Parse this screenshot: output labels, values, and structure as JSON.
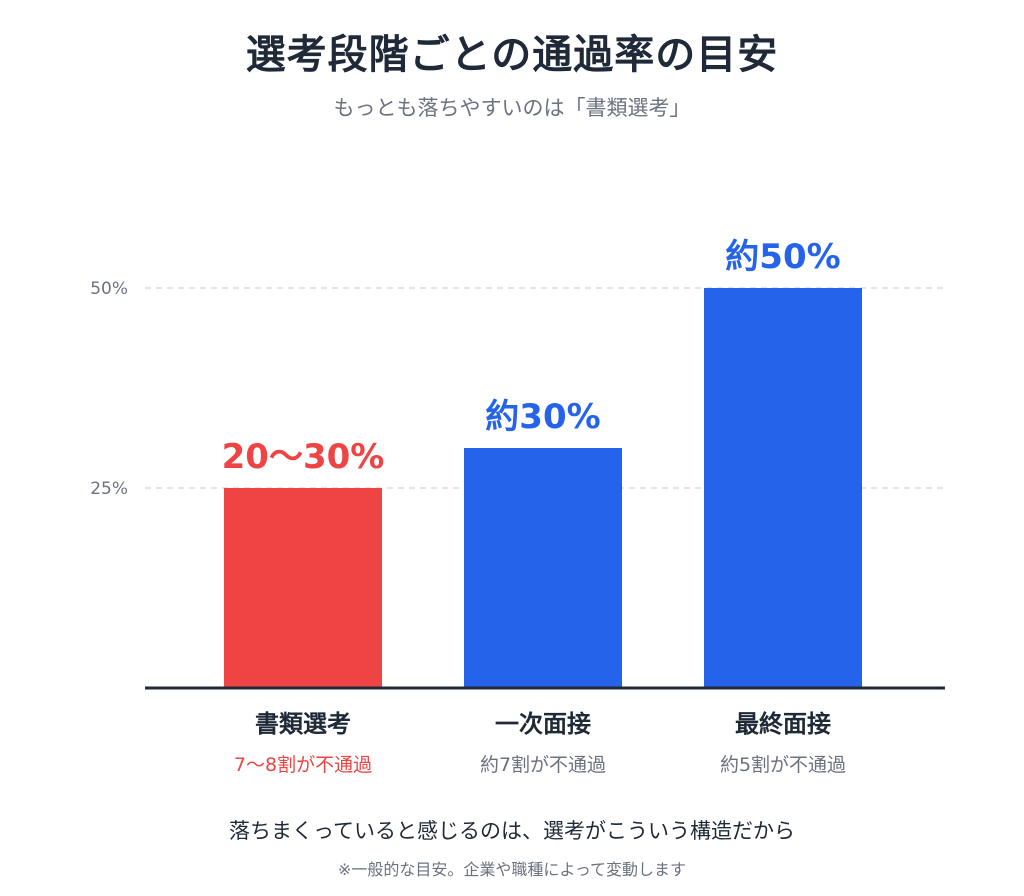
{
  "title": "選考段階ごとの通過率の目安",
  "subtitle": "もっとも落ちやすいのは「書類選考」",
  "caption": "落ちまくっていると感じるのは、選考がこういう構造だから",
  "note": "※一般的な目安。企業や職種によって変動します",
  "colors": {
    "highlight": "#ef4444",
    "bar": "#2563eb",
    "axis": "#1f2937",
    "grid": "#d1d5db",
    "tick": "#6b7280",
    "sub_text": "#6b7280"
  },
  "chart_data": {
    "type": "bar",
    "categories": [
      "書類選考",
      "一次面接",
      "最終面接"
    ],
    "values": [
      25,
      30,
      50
    ],
    "value_labels": [
      "20〜30%",
      "約30%",
      "約50%"
    ],
    "sublabels": [
      "7〜8割が不通過",
      "約7割が不通過",
      "約5割が不通過"
    ],
    "highlight_index": 0,
    "yticks": [
      25,
      50
    ],
    "ytick_labels": [
      "25%",
      "50%"
    ],
    "ylim": [
      0,
      50
    ],
    "grid": true,
    "xlabel": "",
    "ylabel": ""
  }
}
